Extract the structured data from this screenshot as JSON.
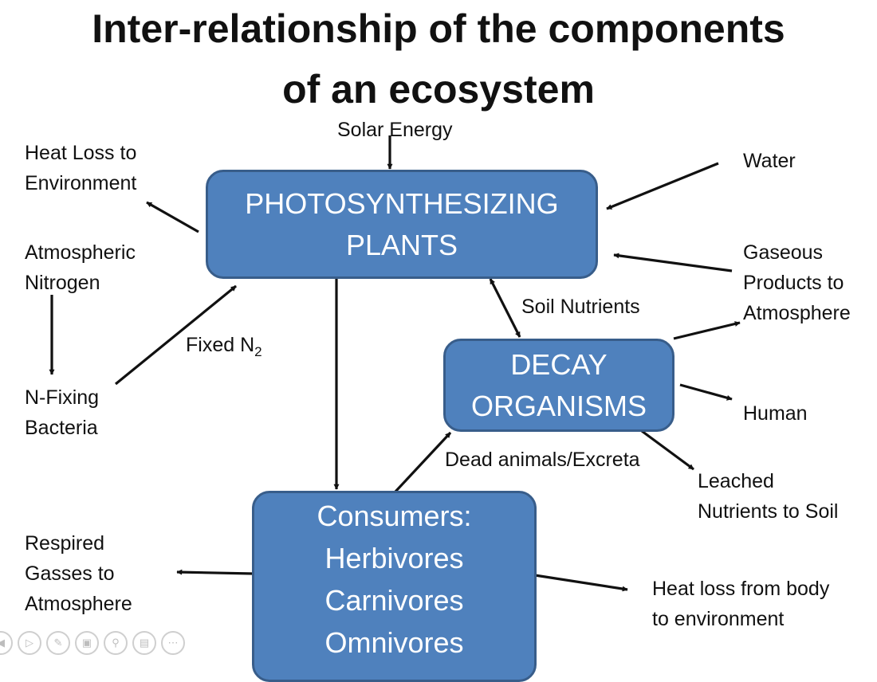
{
  "title": {
    "line1": "Inter-relationship of the components",
    "line2": "of an ecosystem"
  },
  "nodes": {
    "plants": {
      "line1": "PHOTOSYNTHESIZING",
      "line2": "PLANTS"
    },
    "decay": {
      "line1": "DECAY",
      "line2": "ORGANISMS"
    },
    "consumers": {
      "line1": "Consumers:",
      "line2": "Herbivores",
      "line3": "Carnivores",
      "line4": "Omnivores"
    }
  },
  "labels": {
    "solar": "Solar Energy",
    "heat_loss": {
      "line1": "Heat Loss to",
      "line2": "Environment"
    },
    "water": "Water",
    "atm_nitrogen": {
      "line1": "Atmospheric",
      "line2": "Nitrogen"
    },
    "gaseous": {
      "line1": "Gaseous",
      "line2": "Products to",
      "line3": "Atmosphere"
    },
    "soil_nutrients": "Soil Nutrients",
    "fixed_n2": {
      "text": "Fixed N",
      "sub": "2"
    },
    "nfixing": {
      "line1": "N-Fixing",
      "line2": "Bacteria"
    },
    "human": "Human",
    "dead_animals": "Dead animals/Excreta",
    "leached": {
      "line1": "Leached",
      "line2": "Nutrients to Soil"
    },
    "respired": {
      "line1": "Respired",
      "line2": "Gasses to",
      "line3": "Atmosphere"
    },
    "heat_body": {
      "line1": "Heat loss from body",
      "line2": "to environment"
    }
  },
  "toolbar": {
    "icons": [
      "back-icon",
      "play-icon",
      "pen-icon",
      "slides-icon",
      "zoom-icon",
      "subtitles-icon",
      "more-icon"
    ]
  },
  "colors": {
    "box_fill": "#4f81bd",
    "box_border": "#385d8a",
    "text": "#111111"
  }
}
